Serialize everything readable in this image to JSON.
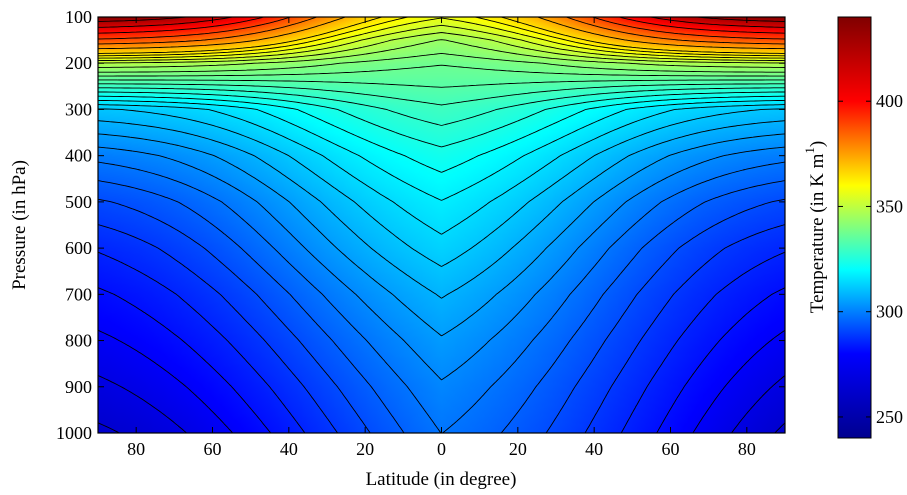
{
  "chart_data": {
    "type": "heatmap",
    "subtype": "filled-contour",
    "title": "",
    "xlabel": "Latitude (in degree)",
    "ylabel": "Pressure (in hPa)",
    "x_range_deg": [
      -90,
      90
    ],
    "x_tick_values": [
      -80,
      -60,
      -40,
      -20,
      0,
      20,
      40,
      60,
      80
    ],
    "x_tick_labels": [
      "80",
      "60",
      "40",
      "20",
      "0",
      "20",
      "40",
      "60",
      "80"
    ],
    "y_range": [
      100,
      1000
    ],
    "y_reversed": true,
    "y_ticks": [
      100,
      200,
      300,
      400,
      500,
      600,
      700,
      800,
      900,
      1000
    ],
    "y_tick_labels": [
      "100",
      "200",
      "300",
      "400",
      "500",
      "600",
      "700",
      "800",
      "900",
      "1000"
    ],
    "colorbar": {
      "label": "Temperature (in K m",
      "label_superscript": "1",
      "range": [
        240,
        440
      ],
      "ticks": [
        250,
        300,
        350,
        400
      ],
      "tick_labels": [
        "250",
        "300",
        "350",
        "400"
      ],
      "colormap": "jet",
      "colormap_stops": [
        "#00008f",
        "#0000ff",
        "#00ffff",
        "#ffff00",
        "#ff0000",
        "#800000"
      ]
    },
    "contour_levels": [
      244,
      248,
      252,
      256,
      260,
      264,
      268,
      272,
      276,
      280,
      284,
      288,
      292,
      296,
      300,
      304,
      308,
      312,
      316,
      320,
      324,
      328,
      332,
      336,
      340,
      345,
      350,
      355,
      360,
      365,
      370,
      380,
      390,
      400,
      410,
      420,
      430,
      440
    ],
    "field_profile": {
      "description": "temperature at the equator and at the poles for each pressure level",
      "pressure_hPa": [
        100,
        150,
        200,
        250,
        300,
        400,
        500,
        600,
        700,
        800,
        900,
        1000
      ],
      "equator_K": [
        355,
        340,
        335,
        333,
        330,
        323,
        318,
        314,
        309,
        305,
        302,
        300
      ],
      "pole_K": [
        440,
        400,
        350,
        325,
        302,
        287,
        276,
        268,
        262,
        257,
        252,
        247
      ]
    }
  }
}
